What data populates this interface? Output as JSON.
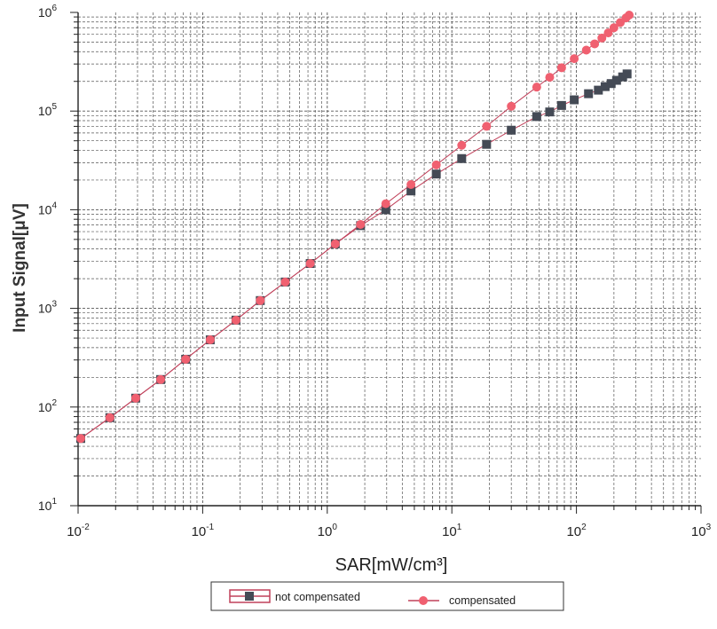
{
  "chart_data": {
    "type": "scatter",
    "title": "",
    "xlabel": "SAR[mW/cm³]",
    "ylabel": "Input Signal[μV]",
    "x_scale": "log",
    "y_scale": "log",
    "xlim": [
      0.01,
      1000
    ],
    "ylim": [
      10,
      1000000
    ],
    "grid": true,
    "legend_position": "bottom-center",
    "x_tick_labels": [
      {
        "base": "10",
        "exp": "-2"
      },
      {
        "base": "10",
        "exp": "-1"
      },
      {
        "base": "10",
        "exp": "0"
      },
      {
        "base": "10",
        "exp": "1"
      },
      {
        "base": "10",
        "exp": "2"
      },
      {
        "base": "10",
        "exp": "3"
      }
    ],
    "y_tick_labels": [
      {
        "base": "10",
        "exp": "1"
      },
      {
        "base": "10",
        "exp": "2"
      },
      {
        "base": "10",
        "exp": "3"
      },
      {
        "base": "10",
        "exp": "4"
      },
      {
        "base": "10",
        "exp": "5"
      },
      {
        "base": "10",
        "exp": "6"
      }
    ],
    "series": [
      {
        "name": "not compensated",
        "color": "#444a55",
        "line_color": "#c0405a",
        "marker": "square",
        "x": [
          0.0105,
          0.018,
          0.029,
          0.046,
          0.073,
          0.115,
          0.185,
          0.29,
          0.46,
          0.73,
          1.16,
          1.85,
          2.95,
          4.7,
          7.5,
          12,
          19,
          30,
          48,
          61,
          76,
          96,
          125,
          150,
          170,
          190,
          210,
          235,
          255
        ],
        "y": [
          48,
          78,
          123,
          190,
          305,
          480,
          760,
          1200,
          1850,
          2850,
          4500,
          6900,
          10000,
          15500,
          23000,
          33000,
          46000,
          64000,
          88000,
          98000,
          114000,
          130000,
          150000,
          163000,
          177000,
          190000,
          205000,
          222000,
          238000
        ]
      },
      {
        "name": "compensated",
        "color": "#f06070",
        "line_color": "#c0405a",
        "marker": "circle",
        "x": [
          0.0105,
          0.018,
          0.029,
          0.046,
          0.073,
          0.115,
          0.185,
          0.29,
          0.46,
          0.73,
          1.16,
          1.85,
          2.95,
          4.7,
          7.5,
          12,
          19,
          30,
          48,
          61,
          76,
          96,
          120,
          140,
          160,
          180,
          200,
          225,
          250,
          265
        ],
        "y": [
          48,
          78,
          123,
          190,
          305,
          480,
          760,
          1200,
          1850,
          2850,
          4500,
          7100,
          11500,
          18000,
          28500,
          45000,
          70000,
          112000,
          175000,
          220000,
          275000,
          340000,
          415000,
          480000,
          550000,
          620000,
          700000,
          790000,
          880000,
          940000
        ]
      }
    ]
  }
}
